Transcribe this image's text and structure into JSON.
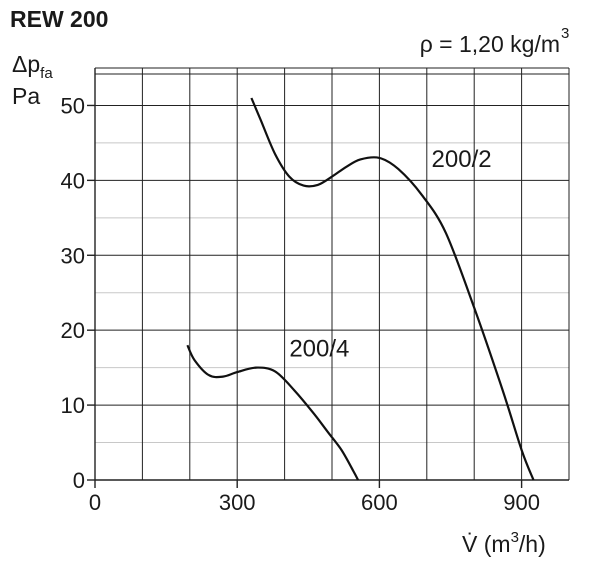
{
  "chart_data": {
    "type": "line",
    "title": "REW 200",
    "annotation": "ρ = 1,20 kg/m",
    "annotation_superscript": "3",
    "ylabel_symbol": "Δp",
    "ylabel_subscript": "fa",
    "ylabel_unit": "Pa",
    "xlabel_prefix": "V̇ (m",
    "xlabel_superscript": "3",
    "xlabel_suffix": "/h)",
    "xlim": [
      0,
      1000
    ],
    "ylim": [
      0,
      55
    ],
    "x_ticks": [
      0,
      300,
      600,
      900
    ],
    "y_ticks": [
      0,
      10,
      20,
      30,
      40,
      50
    ],
    "x_tick_labels": [
      "0",
      "300",
      "600",
      "900"
    ],
    "y_tick_labels": [
      "0",
      "10",
      "20",
      "30",
      "40",
      "50"
    ],
    "x_grid": [
      0,
      100,
      200,
      300,
      400,
      500,
      600,
      700,
      800,
      900,
      1000
    ],
    "y_grid_major": [
      0,
      10,
      20,
      30,
      40,
      50,
      55
    ],
    "y_grid_minor": [
      5,
      15,
      25,
      35,
      45
    ],
    "series": [
      {
        "name": "200/2",
        "label_at": [
          710,
          41.8
        ],
        "points": [
          [
            330,
            51
          ],
          [
            350,
            48
          ],
          [
            380,
            43.5
          ],
          [
            410,
            40.5
          ],
          [
            440,
            39.3
          ],
          [
            470,
            39.4
          ],
          [
            500,
            40.5
          ],
          [
            530,
            41.8
          ],
          [
            560,
            42.8
          ],
          [
            600,
            43
          ],
          [
            640,
            41.5
          ],
          [
            690,
            38
          ],
          [
            740,
            33
          ],
          [
            800,
            23
          ],
          [
            860,
            12
          ],
          [
            900,
            4
          ],
          [
            925,
            0
          ]
        ]
      },
      {
        "name": "200/4",
        "label_at": [
          410,
          16.5
        ],
        "points": [
          [
            195,
            18
          ],
          [
            210,
            16
          ],
          [
            240,
            14
          ],
          [
            270,
            13.8
          ],
          [
            300,
            14.4
          ],
          [
            340,
            15
          ],
          [
            380,
            14.5
          ],
          [
            420,
            12
          ],
          [
            460,
            9
          ],
          [
            490,
            6.5
          ],
          [
            520,
            4
          ],
          [
            545,
            1.2
          ],
          [
            555,
            0
          ]
        ]
      }
    ]
  }
}
